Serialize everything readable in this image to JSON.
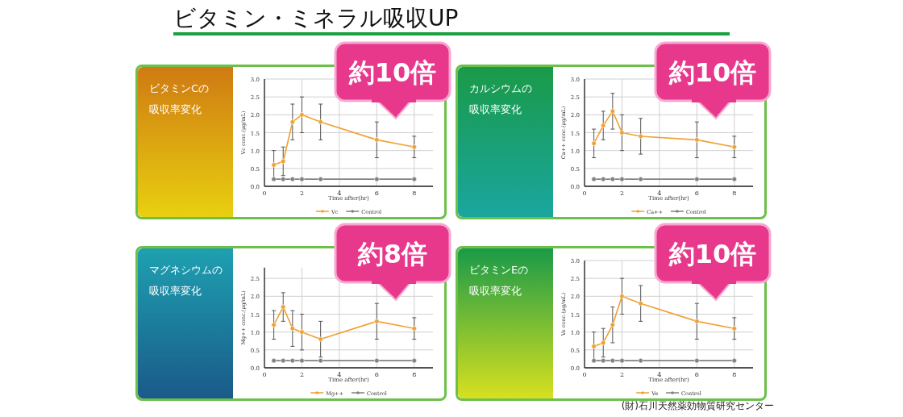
{
  "chart_data": [
    {
      "type": "other",
      "title": "ビタミン・ミネラル吸収UP",
      "annotations": [
        "(財)石川天然薬効物質研究センター"
      ]
    },
    {
      "type": "line",
      "title": "ビタミンCの吸収率変化",
      "annotations": [
        "約10倍"
      ],
      "xlabel": "Time after(hr)",
      "ylabel": "Vc conc.(μg/mL)",
      "xlim": [
        0,
        9
      ],
      "xticks": [
        0,
        2,
        4,
        6,
        8
      ],
      "ylim": [
        0,
        3
      ],
      "yticks": [
        {
          "value": 0,
          "label": "0.0"
        },
        {
          "value": 0.5,
          "label": "0.5"
        },
        {
          "value": 1,
          "label": "1.0"
        },
        {
          "value": 1.5,
          "label": "1.5"
        },
        {
          "value": 2,
          "label": "2.0"
        },
        {
          "value": 2.5,
          "label": "2.5"
        },
        {
          "value": 3,
          "label": "3.0"
        }
      ],
      "grid": true,
      "legend": "bottom",
      "marker": "circle",
      "series": [
        {
          "name": "Vc",
          "color": "#f0a030",
          "x": [
            0.5,
            1,
            1.5,
            2,
            3,
            6,
            8
          ],
          "values": [
            0.6,
            0.7,
            1.8,
            2.0,
            1.8,
            1.3,
            1.1
          ],
          "errors": [
            0.4,
            0.4,
            0.5,
            0.5,
            0.5,
            0.5,
            0.3
          ]
        },
        {
          "name": "Control",
          "color": "#808080",
          "x": [
            0.5,
            1,
            1.5,
            2,
            3,
            6,
            8
          ],
          "values": [
            0.2,
            0.2,
            0.2,
            0.2,
            0.2,
            0.2,
            0.2
          ]
        }
      ]
    },
    {
      "type": "line",
      "title": "カルシウムの吸収率変化",
      "annotations": [
        "約10倍"
      ],
      "xlabel": "Time after(hr)",
      "ylabel": "Ca++ conc.(μg/mL)",
      "xlim": [
        0,
        9
      ],
      "xticks": [
        0,
        2,
        4,
        6,
        8
      ],
      "ylim": [
        0,
        3
      ],
      "yticks": [
        {
          "value": 0,
          "label": "0.0"
        },
        {
          "value": 0.5,
          "label": "0.5"
        },
        {
          "value": 1,
          "label": "1.0"
        },
        {
          "value": 1.5,
          "label": "1.5"
        },
        {
          "value": 2,
          "label": "2.0"
        },
        {
          "value": 2.5,
          "label": "2.5"
        },
        {
          "value": 3,
          "label": "3.0"
        }
      ],
      "grid": true,
      "legend": "bottom",
      "marker": "circle",
      "series": [
        {
          "name": "Ca++",
          "color": "#f0a030",
          "x": [
            0.5,
            1,
            1.5,
            2,
            3,
            6,
            8
          ],
          "values": [
            1.2,
            1.7,
            2.1,
            1.5,
            1.4,
            1.3,
            1.1
          ],
          "errors": [
            0.4,
            0.4,
            0.5,
            0.5,
            0.5,
            0.5,
            0.3
          ]
        },
        {
          "name": "Control",
          "color": "#808080",
          "x": [
            0.5,
            1,
            1.5,
            2,
            3,
            6,
            8
          ],
          "values": [
            0.2,
            0.2,
            0.2,
            0.2,
            0.2,
            0.2,
            0.2
          ]
        }
      ]
    },
    {
      "type": "line",
      "title": "マグネシウムの吸収率変化",
      "annotations": [
        "約8倍"
      ],
      "xlabel": "Time after(hr)",
      "ylabel": "Mg++ conc.(μg/mL)",
      "xlim": [
        0,
        9
      ],
      "xticks": [
        0,
        2,
        4,
        6,
        8
      ],
      "ylim": [
        0,
        2.8
      ],
      "yticks": [
        {
          "value": 0,
          "label": "0.0"
        },
        {
          "value": 0.5,
          "label": "0.5"
        },
        {
          "value": 1,
          "label": "1.0"
        },
        {
          "value": 1.5,
          "label": "1.5"
        },
        {
          "value": 2,
          "label": "2.0"
        },
        {
          "value": 2.5,
          "label": "2.5"
        }
      ],
      "grid": true,
      "legend": "bottom",
      "marker": "circle",
      "series": [
        {
          "name": "Mg++",
          "color": "#f0a030",
          "x": [
            0.5,
            1,
            1.5,
            2,
            3,
            6,
            8
          ],
          "values": [
            1.2,
            1.7,
            1.1,
            1.0,
            0.8,
            1.3,
            1.1
          ],
          "errors": [
            0.4,
            0.4,
            0.5,
            0.5,
            0.5,
            0.5,
            0.3
          ]
        },
        {
          "name": "Control",
          "color": "#808080",
          "x": [
            0.5,
            1,
            1.5,
            2,
            3,
            6,
            8
          ],
          "values": [
            0.2,
            0.2,
            0.2,
            0.2,
            0.2,
            0.2,
            0.2
          ]
        }
      ]
    },
    {
      "type": "line",
      "title": "ビタミンEの吸収率変化",
      "annotations": [
        "約10倍"
      ],
      "xlabel": "Time after(hr)",
      "ylabel": "Ve conc.(μg/mL)",
      "xlim": [
        0,
        9
      ],
      "xticks": [
        0,
        2,
        4,
        6,
        8
      ],
      "ylim": [
        0,
        3
      ],
      "yticks": [
        {
          "value": 0,
          "label": "0.0"
        },
        {
          "value": 0.5,
          "label": "0.5"
        },
        {
          "value": 1,
          "label": "1.0"
        },
        {
          "value": 1.5,
          "label": "1.5"
        },
        {
          "value": 2,
          "label": "2.0"
        },
        {
          "value": 2.5,
          "label": "2.5"
        },
        {
          "value": 3,
          "label": "3.0"
        }
      ],
      "grid": true,
      "legend": "bottom",
      "marker": "circle",
      "series": [
        {
          "name": "Ve",
          "color": "#f0a030",
          "x": [
            0.5,
            1,
            1.5,
            2,
            3,
            6,
            8
          ],
          "values": [
            0.6,
            0.7,
            1.2,
            2.0,
            1.8,
            1.3,
            1.1
          ],
          "errors": [
            0.4,
            0.4,
            0.5,
            0.5,
            0.5,
            0.5,
            0.3
          ]
        },
        {
          "name": "Control",
          "color": "#808080",
          "x": [
            0.5,
            1,
            1.5,
            2,
            3,
            6,
            8
          ],
          "values": [
            0.2,
            0.2,
            0.2,
            0.2,
            0.2,
            0.2,
            0.2
          ]
        }
      ]
    }
  ]
}
